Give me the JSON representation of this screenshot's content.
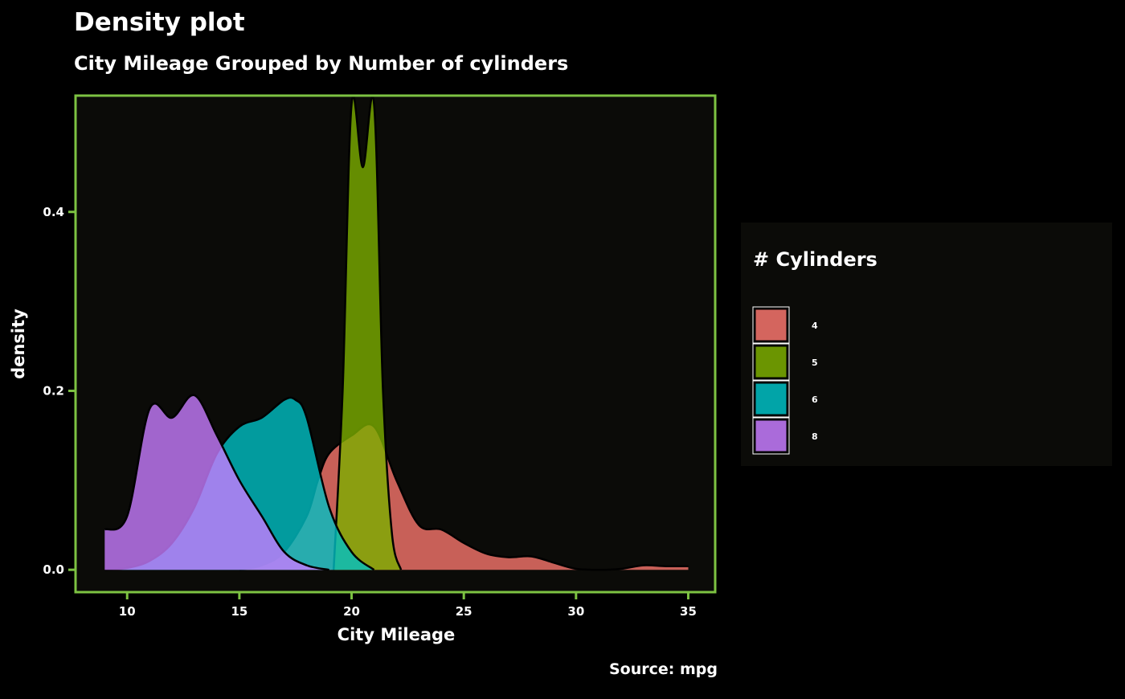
{
  "chart_data": {
    "type": "area",
    "title": "Density plot",
    "subtitle": "City Mileage Grouped by Number of cylinders",
    "caption": "Source: mpg",
    "xlabel": "City Mileage",
    "ylabel": "density",
    "xlim": [
      7.7,
      36.2
    ],
    "ylim": [
      -0.025,
      0.53
    ],
    "x_ticks": [
      10,
      15,
      20,
      25,
      30,
      35
    ],
    "y_ticks": [
      0.0,
      0.2,
      0.4
    ],
    "y_tick_labels": [
      "0.0",
      "0.2",
      "0.4"
    ],
    "grid": false,
    "legend_position": "right",
    "legend": {
      "title": "# Cylinders",
      "entries": [
        {
          "label": "4",
          "color": "#F8766D"
        },
        {
          "label": "5",
          "color": "#7CAE00"
        },
        {
          "label": "6",
          "color": "#00BFC4"
        },
        {
          "label": "8",
          "color": "#C77CFF"
        }
      ]
    },
    "colors": {
      "background": "#000000",
      "panel": "#0B0B08",
      "panel_border": "#7DC242",
      "legend_background": "#0B0B08"
    },
    "series": [
      {
        "name": "4",
        "color": "#F8766D",
        "x": [
          15,
          16,
          17,
          18,
          18.5,
          19,
          20,
          21,
          22,
          23,
          24,
          25,
          26,
          27,
          28,
          29,
          30,
          31,
          32,
          33,
          34,
          35
        ],
        "y": [
          0.0,
          0.005,
          0.02,
          0.06,
          0.1,
          0.13,
          0.15,
          0.16,
          0.1,
          0.05,
          0.045,
          0.03,
          0.018,
          0.014,
          0.015,
          0.008,
          0.001,
          0.0,
          0.001,
          0.005,
          0.004,
          0.004
        ]
      },
      {
        "name": "5",
        "color": "#7CAE00",
        "x": [
          19.2,
          19.6,
          20.0,
          20.5,
          21.0,
          21.4,
          21.8,
          22.2
        ],
        "y": [
          0.0,
          0.2,
          0.52,
          0.45,
          0.52,
          0.2,
          0.04,
          0.0
        ]
      },
      {
        "name": "6",
        "color": "#00BFC4",
        "x": [
          9,
          10,
          11,
          12,
          13,
          14,
          15,
          16,
          17,
          17.5,
          18,
          19,
          20,
          21
        ],
        "y": [
          0.0,
          0.002,
          0.01,
          0.03,
          0.07,
          0.13,
          0.16,
          0.17,
          0.19,
          0.19,
          0.17,
          0.07,
          0.02,
          0.0
        ]
      },
      {
        "name": "8",
        "color": "#C77CFF",
        "x": [
          9,
          10,
          11,
          12,
          13,
          14,
          15,
          16,
          17,
          18,
          19
        ],
        "y": [
          0.045,
          0.06,
          0.18,
          0.17,
          0.195,
          0.15,
          0.1,
          0.06,
          0.02,
          0.005,
          0.0
        ]
      }
    ]
  }
}
